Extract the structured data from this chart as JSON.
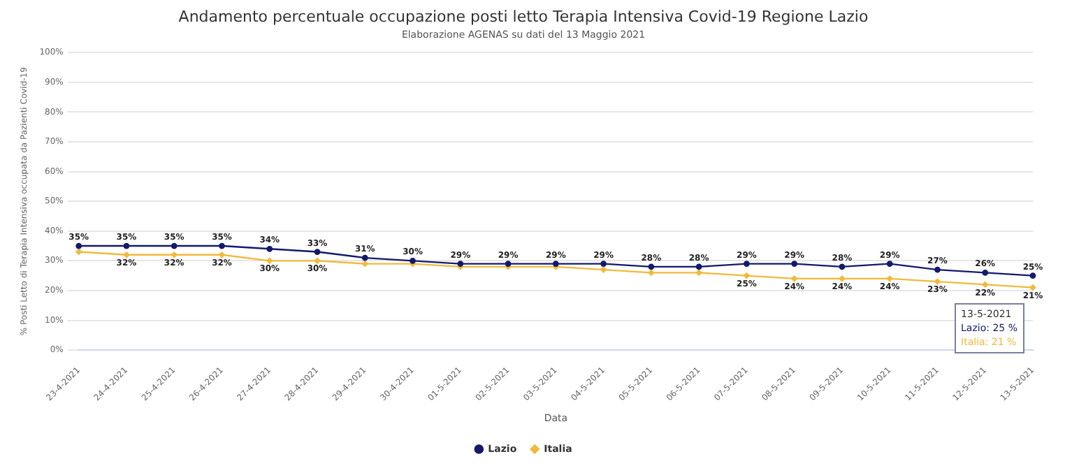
{
  "chart_data": {
    "type": "line",
    "title": "Andamento percentuale occupazione posti letto Terapia Intensiva Covid-19 Regione Lazio",
    "subtitle": "Elaborazione AGENAS su dati del 13 Maggio 2021",
    "xlabel": "Data",
    "ylabel": "% Posti Letto di Terapia Intensiva occupata da Pazienti Covid-19",
    "categories": [
      "23-4-2021",
      "24-4-2021",
      "25-4-2021",
      "26-4-2021",
      "27-4-2021",
      "28-4-2021",
      "29-4-2021",
      "30-4-2021",
      "01-5-2021",
      "02-5-2021",
      "03-5-2021",
      "04-5-2021",
      "05-5-2021",
      "06-5-2021",
      "07-5-2021",
      "08-5-2021",
      "09-5-2021",
      "10-5-2021",
      "11-5-2021",
      "12-5-2021",
      "13-5-2021"
    ],
    "series": [
      {
        "name": "Lazio",
        "color": "#141a6b",
        "marker": "circle",
        "values": [
          35,
          35,
          35,
          35,
          34,
          33,
          31,
          30,
          29,
          29,
          29,
          29,
          28,
          28,
          29,
          29,
          28,
          29,
          27,
          26,
          25
        ],
        "value_labels": [
          "35%",
          "35%",
          "35%",
          "35%",
          "34%",
          "33%",
          "31%",
          "30%",
          "29%",
          "29%",
          "29%",
          "29%",
          "28%",
          "28%",
          "29%",
          "29%",
          "28%",
          "29%",
          "27%",
          "26%",
          "25%"
        ]
      },
      {
        "name": "Italia",
        "color": "#f0ba3c",
        "marker": "diamond",
        "values": [
          33,
          32,
          32,
          32,
          30,
          30,
          29,
          29,
          28,
          28,
          28,
          27,
          26,
          26,
          25,
          24,
          24,
          24,
          23,
          22,
          21
        ],
        "value_labels": [
          null,
          "32%",
          "32%",
          "32%",
          "30%",
          "30%",
          null,
          null,
          null,
          null,
          null,
          null,
          null,
          null,
          "25%",
          "24%",
          "24%",
          "24%",
          "23%",
          "22%",
          "21%"
        ]
      }
    ],
    "ylim": [
      0,
      100
    ],
    "yticks": [
      {
        "value": 0,
        "label": "0%"
      },
      {
        "value": 10,
        "label": "10%"
      },
      {
        "value": 20,
        "label": "20%"
      },
      {
        "value": 30,
        "label": "30%"
      },
      {
        "value": 40,
        "label": "40%"
      },
      {
        "value": 50,
        "label": "50%"
      },
      {
        "value": 60,
        "label": "60%"
      },
      {
        "value": 70,
        "label": "70%"
      },
      {
        "value": 80,
        "label": "80%"
      },
      {
        "value": 90,
        "label": "90%"
      },
      {
        "value": 100,
        "label": "100%"
      }
    ],
    "grid": "y",
    "legend": "bottom",
    "annotations": [
      "13-5-2021",
      "Lazio: 25 %",
      "Italia: 21 %"
    ]
  }
}
